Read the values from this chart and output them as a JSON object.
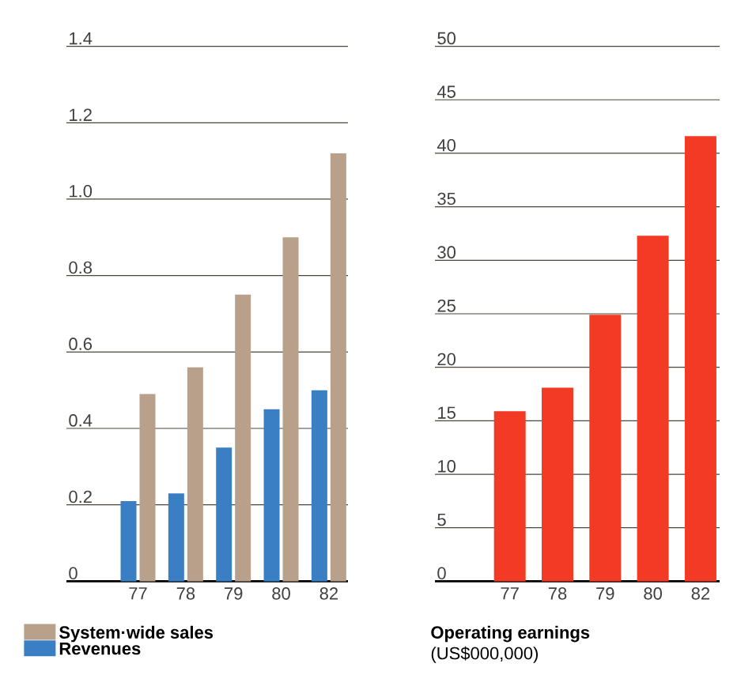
{
  "chart_data": [
    {
      "type": "bar",
      "categories": [
        "77",
        "78",
        "79",
        "80",
        "82"
      ],
      "series": [
        {
          "name": "Revenues",
          "color": "#3a7fc4",
          "values": [
            0.21,
            0.23,
            0.35,
            0.45,
            0.5
          ]
        },
        {
          "name": "System·wide sales",
          "color": "#b8a08a",
          "values": [
            0.49,
            0.56,
            0.75,
            0.9,
            1.12
          ]
        }
      ],
      "ylim": [
        0,
        1.4
      ],
      "yticks": [
        0,
        0.2,
        0.4,
        0.6,
        0.8,
        {
          "value": 1,
          "label": "1.0"
        },
        1.2,
        1.4
      ],
      "grid": "y",
      "legend": "bottom"
    },
    {
      "type": "bar",
      "title": "Operating earnings",
      "subtitle": "(US$000,000)",
      "categories": [
        "77",
        "78",
        "79",
        "80",
        "82"
      ],
      "series": [
        {
          "color": "#f23a24",
          "values": [
            15.9,
            18.1,
            24.9,
            32.3,
            41.6
          ]
        }
      ],
      "ylim": [
        0,
        50
      ],
      "yticks": [
        0,
        5,
        10,
        15,
        20,
        25,
        30,
        35,
        40,
        45,
        50
      ],
      "grid": "y"
    }
  ]
}
